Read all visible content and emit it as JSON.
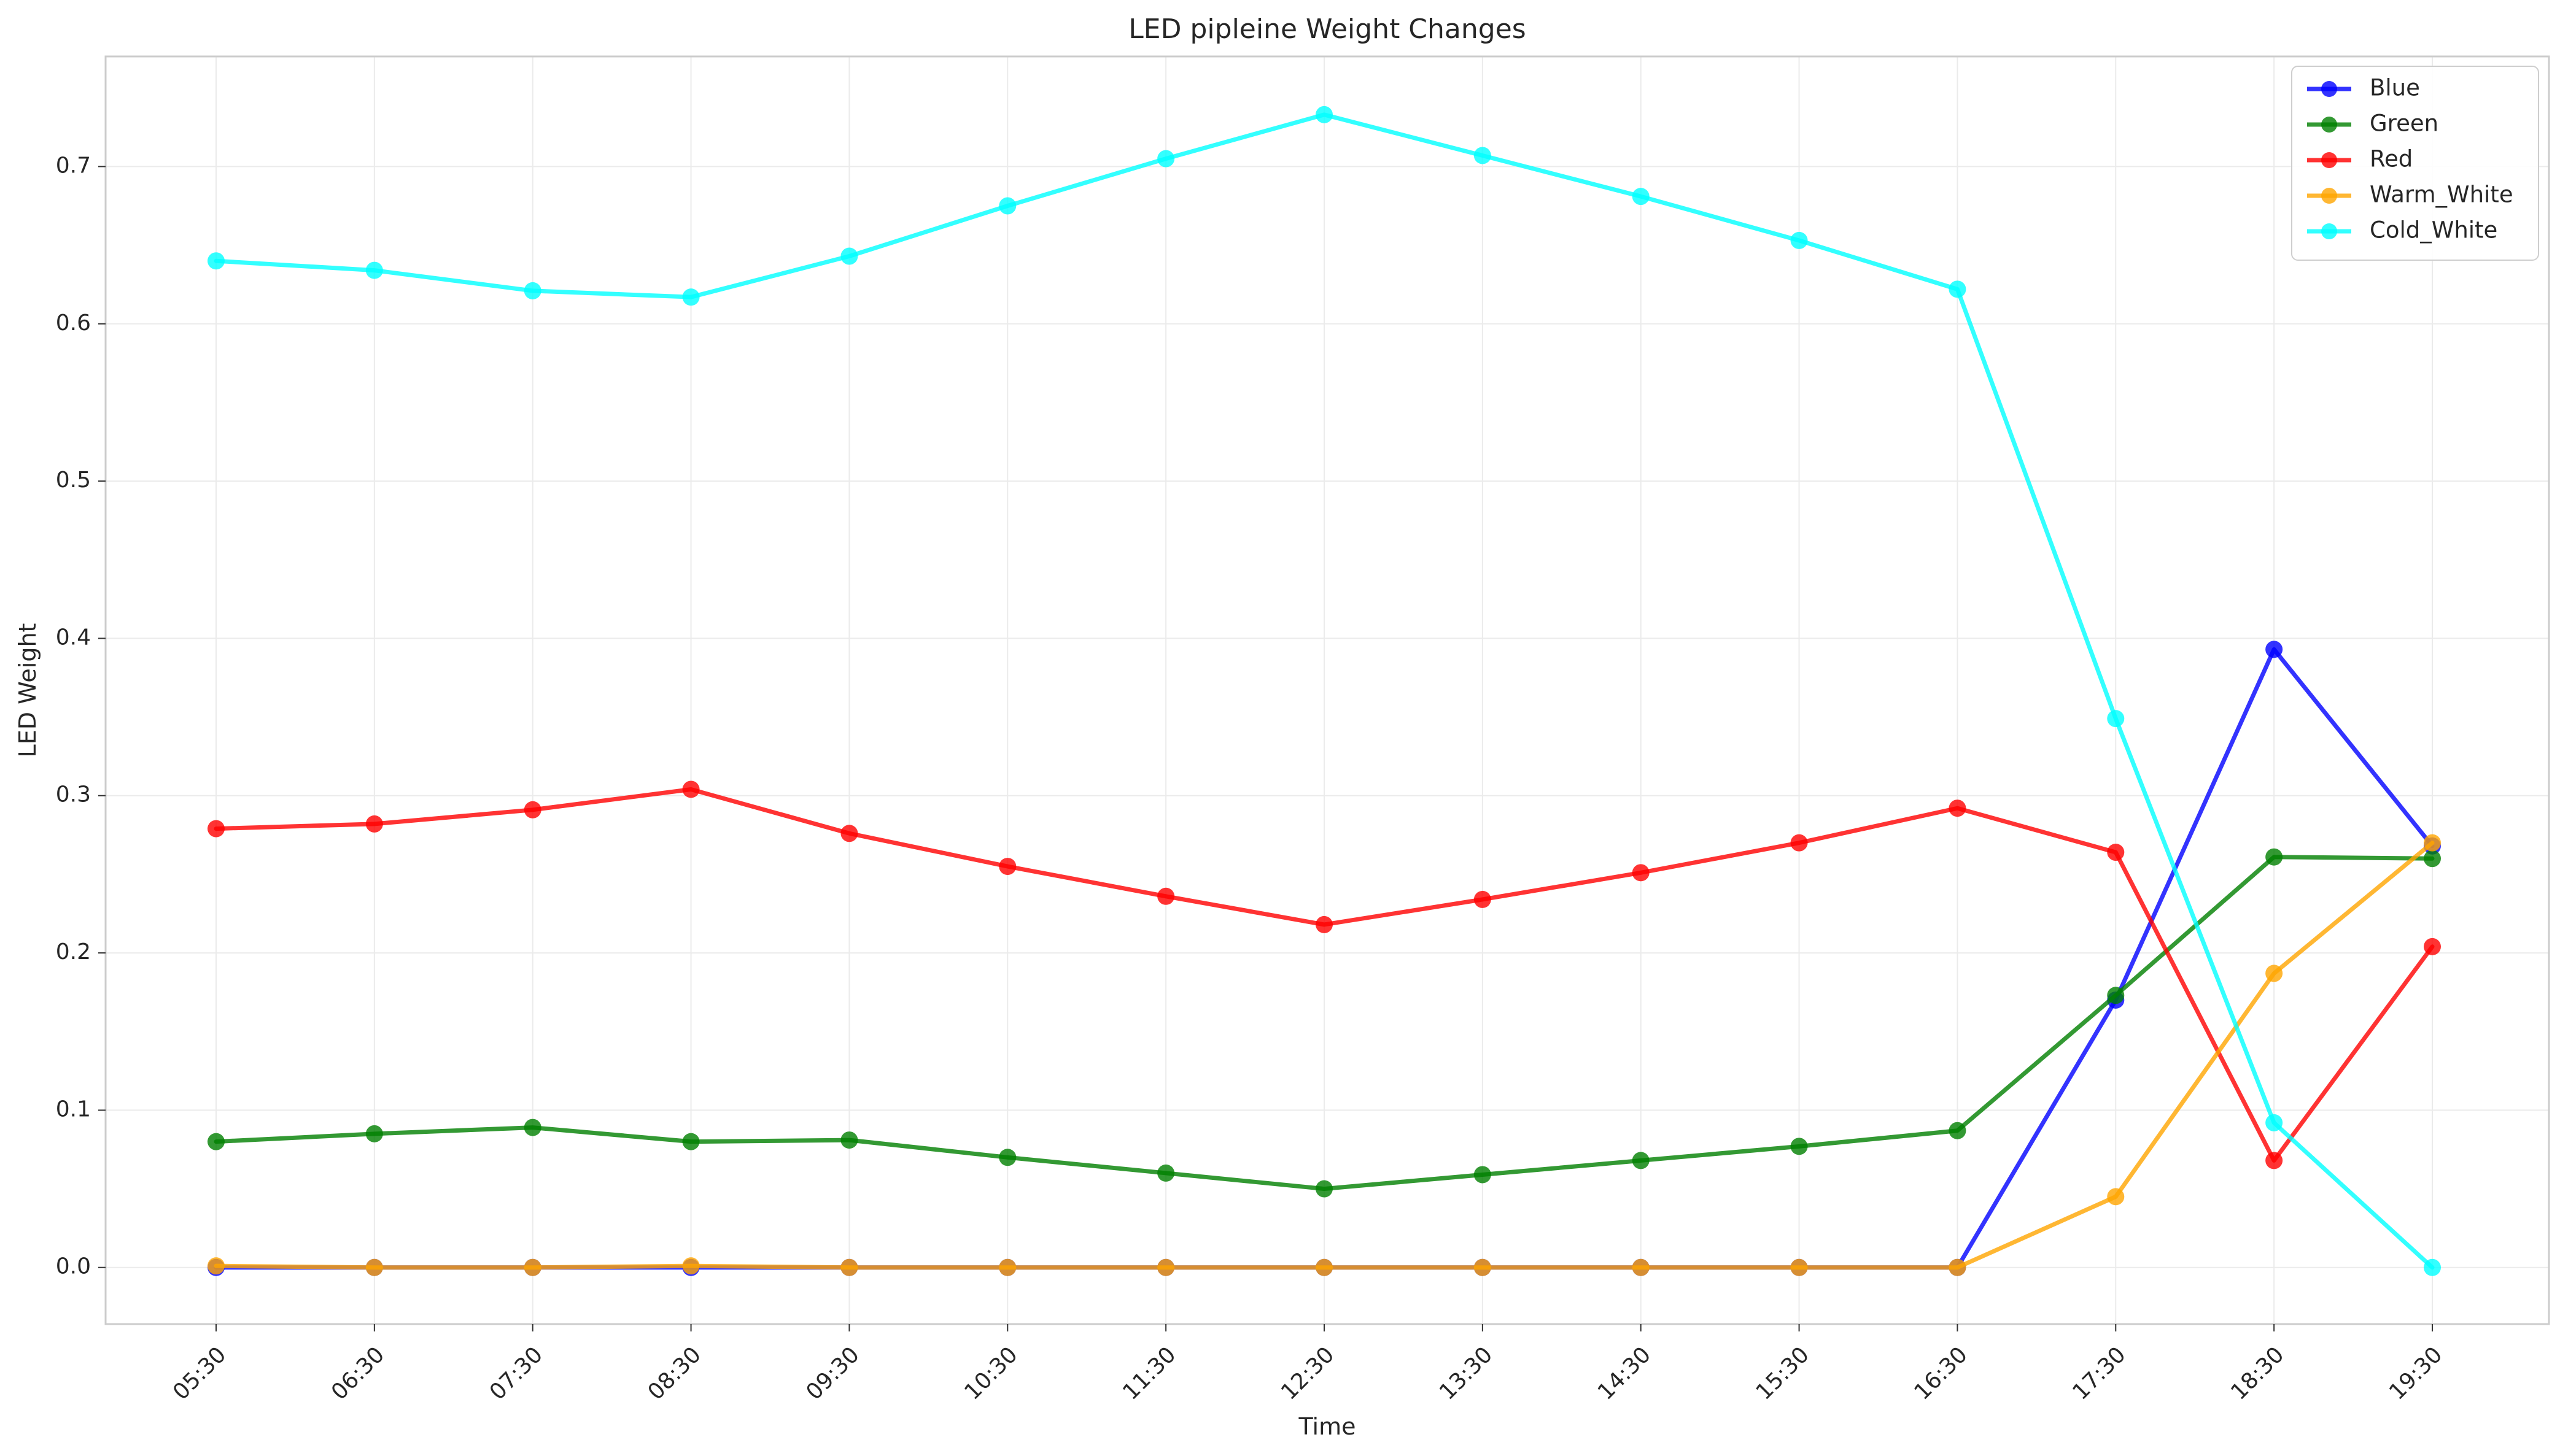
{
  "chart_data": {
    "type": "line",
    "title": "LED pipleine Weight Changes",
    "xlabel": "Time",
    "ylabel": "LED Weight",
    "x": [
      "05:30",
      "06:30",
      "07:30",
      "08:30",
      "09:30",
      "10:30",
      "11:30",
      "12:30",
      "13:30",
      "14:30",
      "15:30",
      "16:30",
      "17:30",
      "18:30",
      "19:30"
    ],
    "ylim": [
      -0.036,
      0.77
    ],
    "yticks": [
      "0.0",
      "0.1",
      "0.2",
      "0.3",
      "0.4",
      "0.5",
      "0.6",
      "0.7"
    ],
    "grid": true,
    "legend_position": "top-right",
    "series": [
      {
        "name": "Blue",
        "color": "#0000ff",
        "values": [
          0.0,
          0.0,
          0.0,
          0.0,
          0.0,
          0.0,
          0.0,
          0.0,
          0.0,
          0.0,
          0.0,
          0.0,
          0.17,
          0.393,
          0.268
        ]
      },
      {
        "name": "Green",
        "color": "#008000",
        "values": [
          0.08,
          0.085,
          0.089,
          0.08,
          0.081,
          0.07,
          0.06,
          0.05,
          0.059,
          0.068,
          0.077,
          0.087,
          0.173,
          0.261,
          0.26
        ]
      },
      {
        "name": "Red",
        "color": "#ff0000",
        "values": [
          0.279,
          0.282,
          0.291,
          0.304,
          0.276,
          0.255,
          0.236,
          0.218,
          0.234,
          0.251,
          0.27,
          0.292,
          0.264,
          0.068,
          0.204
        ]
      },
      {
        "name": "Warm_White",
        "color": "#ffa500",
        "values": [
          0.001,
          0.0,
          0.0,
          0.001,
          0.0,
          0.0,
          0.0,
          0.0,
          0.0,
          0.0,
          0.0,
          0.0,
          0.045,
          0.187,
          0.27
        ]
      },
      {
        "name": "Cold_White",
        "color": "#00ffff",
        "values": [
          0.64,
          0.634,
          0.621,
          0.617,
          0.643,
          0.675,
          0.705,
          0.733,
          0.707,
          0.681,
          0.653,
          0.622,
          0.349,
          0.092,
          0.0
        ]
      }
    ]
  }
}
